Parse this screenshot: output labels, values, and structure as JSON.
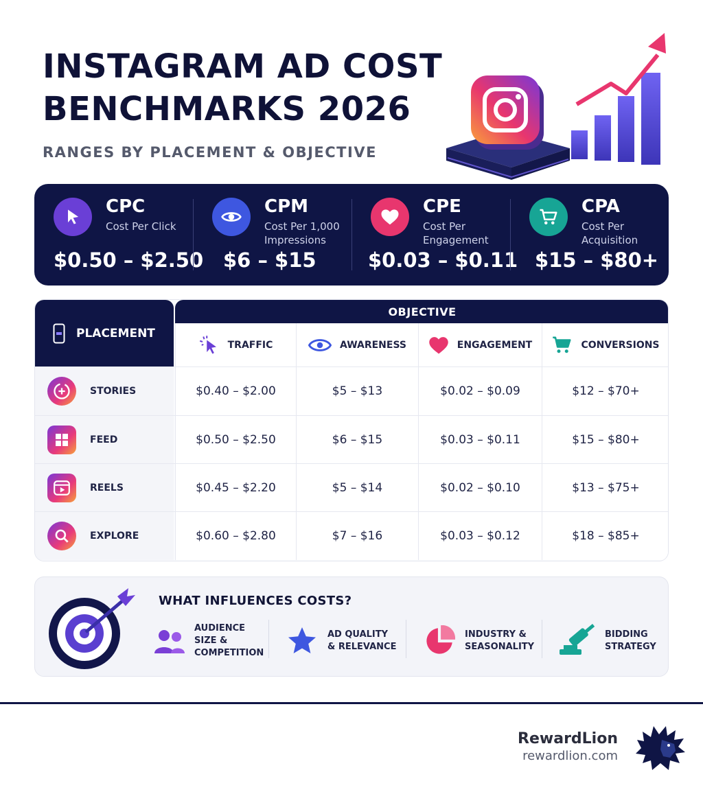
{
  "header": {
    "title_line1": "INSTAGRAM AD COST",
    "title_line2": "BENCHMARKS 2026",
    "subtitle": "RANGES BY PLACEMENT & OBJECTIVE"
  },
  "metrics": [
    {
      "abbr": "CPC",
      "desc": "Cost Per Click",
      "range": "$0.50 – $2.50",
      "icon": "cursor-icon",
      "color": "#6a3fd6"
    },
    {
      "abbr": "CPM",
      "desc": "Cost Per 1,000 Impressions",
      "range": "$6 – $15",
      "icon": "eye-icon",
      "color": "#3e57e0"
    },
    {
      "abbr": "CPE",
      "desc": "Cost Per Engagement",
      "range": "$0.03 – $0.11",
      "icon": "heart-icon",
      "color": "#e8366e"
    },
    {
      "abbr": "CPA",
      "desc": "Cost Per Acquisition",
      "range": "$15 – $80+",
      "icon": "cart-icon",
      "color": "#17a595"
    }
  ],
  "table": {
    "placement_header": "PLACEMENT",
    "objective_header": "OBJECTIVE",
    "columns": [
      "TRAFFIC",
      "AWARENESS",
      "ENGAGEMENT",
      "CONVERSIONS"
    ],
    "rows": [
      {
        "label": "STORIES",
        "icon": "stories-icon",
        "values": [
          "$0.40 – $2.00",
          "$5 – $13",
          "$0.02 – $0.09",
          "$12 – $70+"
        ]
      },
      {
        "label": "FEED",
        "icon": "feed-grid-icon",
        "values": [
          "$0.50 – $2.50",
          "$6 – $15",
          "$0.03 – $0.11",
          "$15 – $80+"
        ]
      },
      {
        "label": "REELS",
        "icon": "reels-play-icon",
        "values": [
          "$0.45 – $2.20",
          "$5 – $14",
          "$0.02 – $0.10",
          "$13 – $75+"
        ]
      },
      {
        "label": "EXPLORE",
        "icon": "explore-search-icon",
        "values": [
          "$0.60 – $2.80",
          "$7 – $16",
          "$0.03 – $0.12",
          "$18 – $85+"
        ]
      }
    ]
  },
  "influences": {
    "title": "WHAT INFLUENCES COSTS?",
    "items": [
      {
        "line1": "AUDIENCE",
        "line2": "SIZE &",
        "line3": "COMPETITION",
        "icon": "people-icon"
      },
      {
        "line1": "AD QUALITY",
        "line2": "& RELEVANCE",
        "line3": "",
        "icon": "star-icon"
      },
      {
        "line1": "INDUSTRY &",
        "line2": "SEASONALITY",
        "line3": "",
        "icon": "pie-chart-icon"
      },
      {
        "line1": "BIDDING",
        "line2": "STRATEGY",
        "line3": "",
        "icon": "gavel-icon"
      }
    ]
  },
  "brand": {
    "name": "RewardLion",
    "url": "rewardlion.com"
  }
}
